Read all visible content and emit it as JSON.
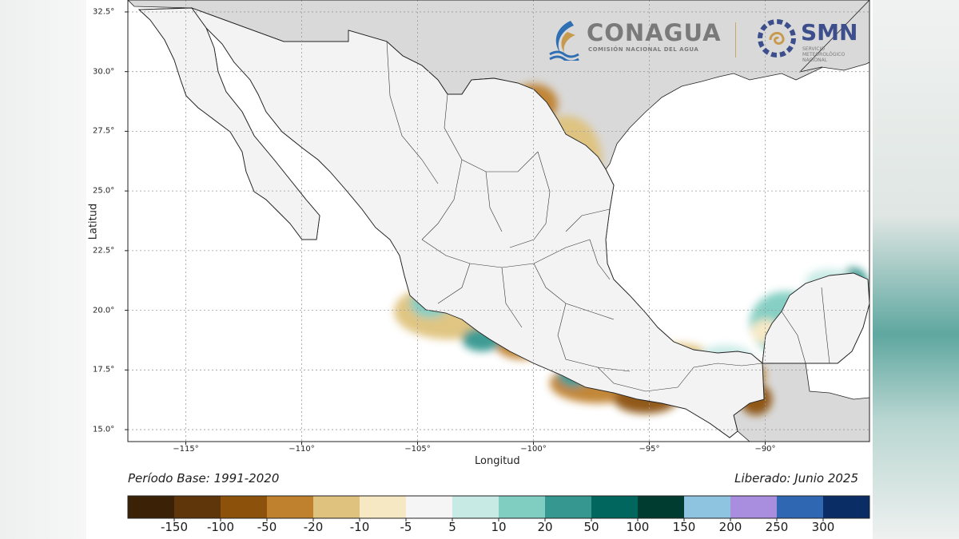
{
  "axes": {
    "xlabel": "Longitud",
    "ylabel": "Latitud",
    "lon_range": [
      -117.5,
      -85.5
    ],
    "lat_range": [
      14.5,
      33.0
    ],
    "lon_ticks": [
      "−115°",
      "−110°",
      "−105°",
      "−100°",
      "−95°",
      "−90°"
    ],
    "lat_ticks": [
      "32.5°",
      "30.0°",
      "27.5°",
      "25.0°",
      "22.5°",
      "20.0°",
      "17.5°",
      "15.0°"
    ],
    "grid": true
  },
  "notes": {
    "base_period": "Período Base: 1991-2020",
    "released": "Liberado: Junio 2025"
  },
  "logos": {
    "conagua_name": "CONAGUA",
    "conagua_subtitle": "COMISIÓN NACIONAL DEL AGUA",
    "smn_name": "SMN",
    "smn_subtitle": "SERVICIO METEOROLÓGICO NACIONAL"
  },
  "colorbar": {
    "colors": [
      "#3b2207",
      "#5e3609",
      "#8c510a",
      "#bf812d",
      "#dfc27d",
      "#f6e8c3",
      "#f5f5f5",
      "#c7eae5",
      "#80cdc1",
      "#35978f",
      "#01665e",
      "#003c30",
      "#8ec4e0",
      "#a98ee0",
      "#2f67b3",
      "#0b2d66"
    ],
    "labels": [
      "-150",
      "-100",
      "-50",
      "-20",
      "-10",
      "-5",
      "5",
      "10",
      "20",
      "50",
      "100",
      "150",
      "200",
      "250",
      "300"
    ]
  },
  "colors": {
    "land_other": "#d9d9d9",
    "ocean": "#ffffff",
    "gridline": "#9a9a9a",
    "conagua_text": "#7a7a7a",
    "smn_text": "#3c4e8c"
  }
}
